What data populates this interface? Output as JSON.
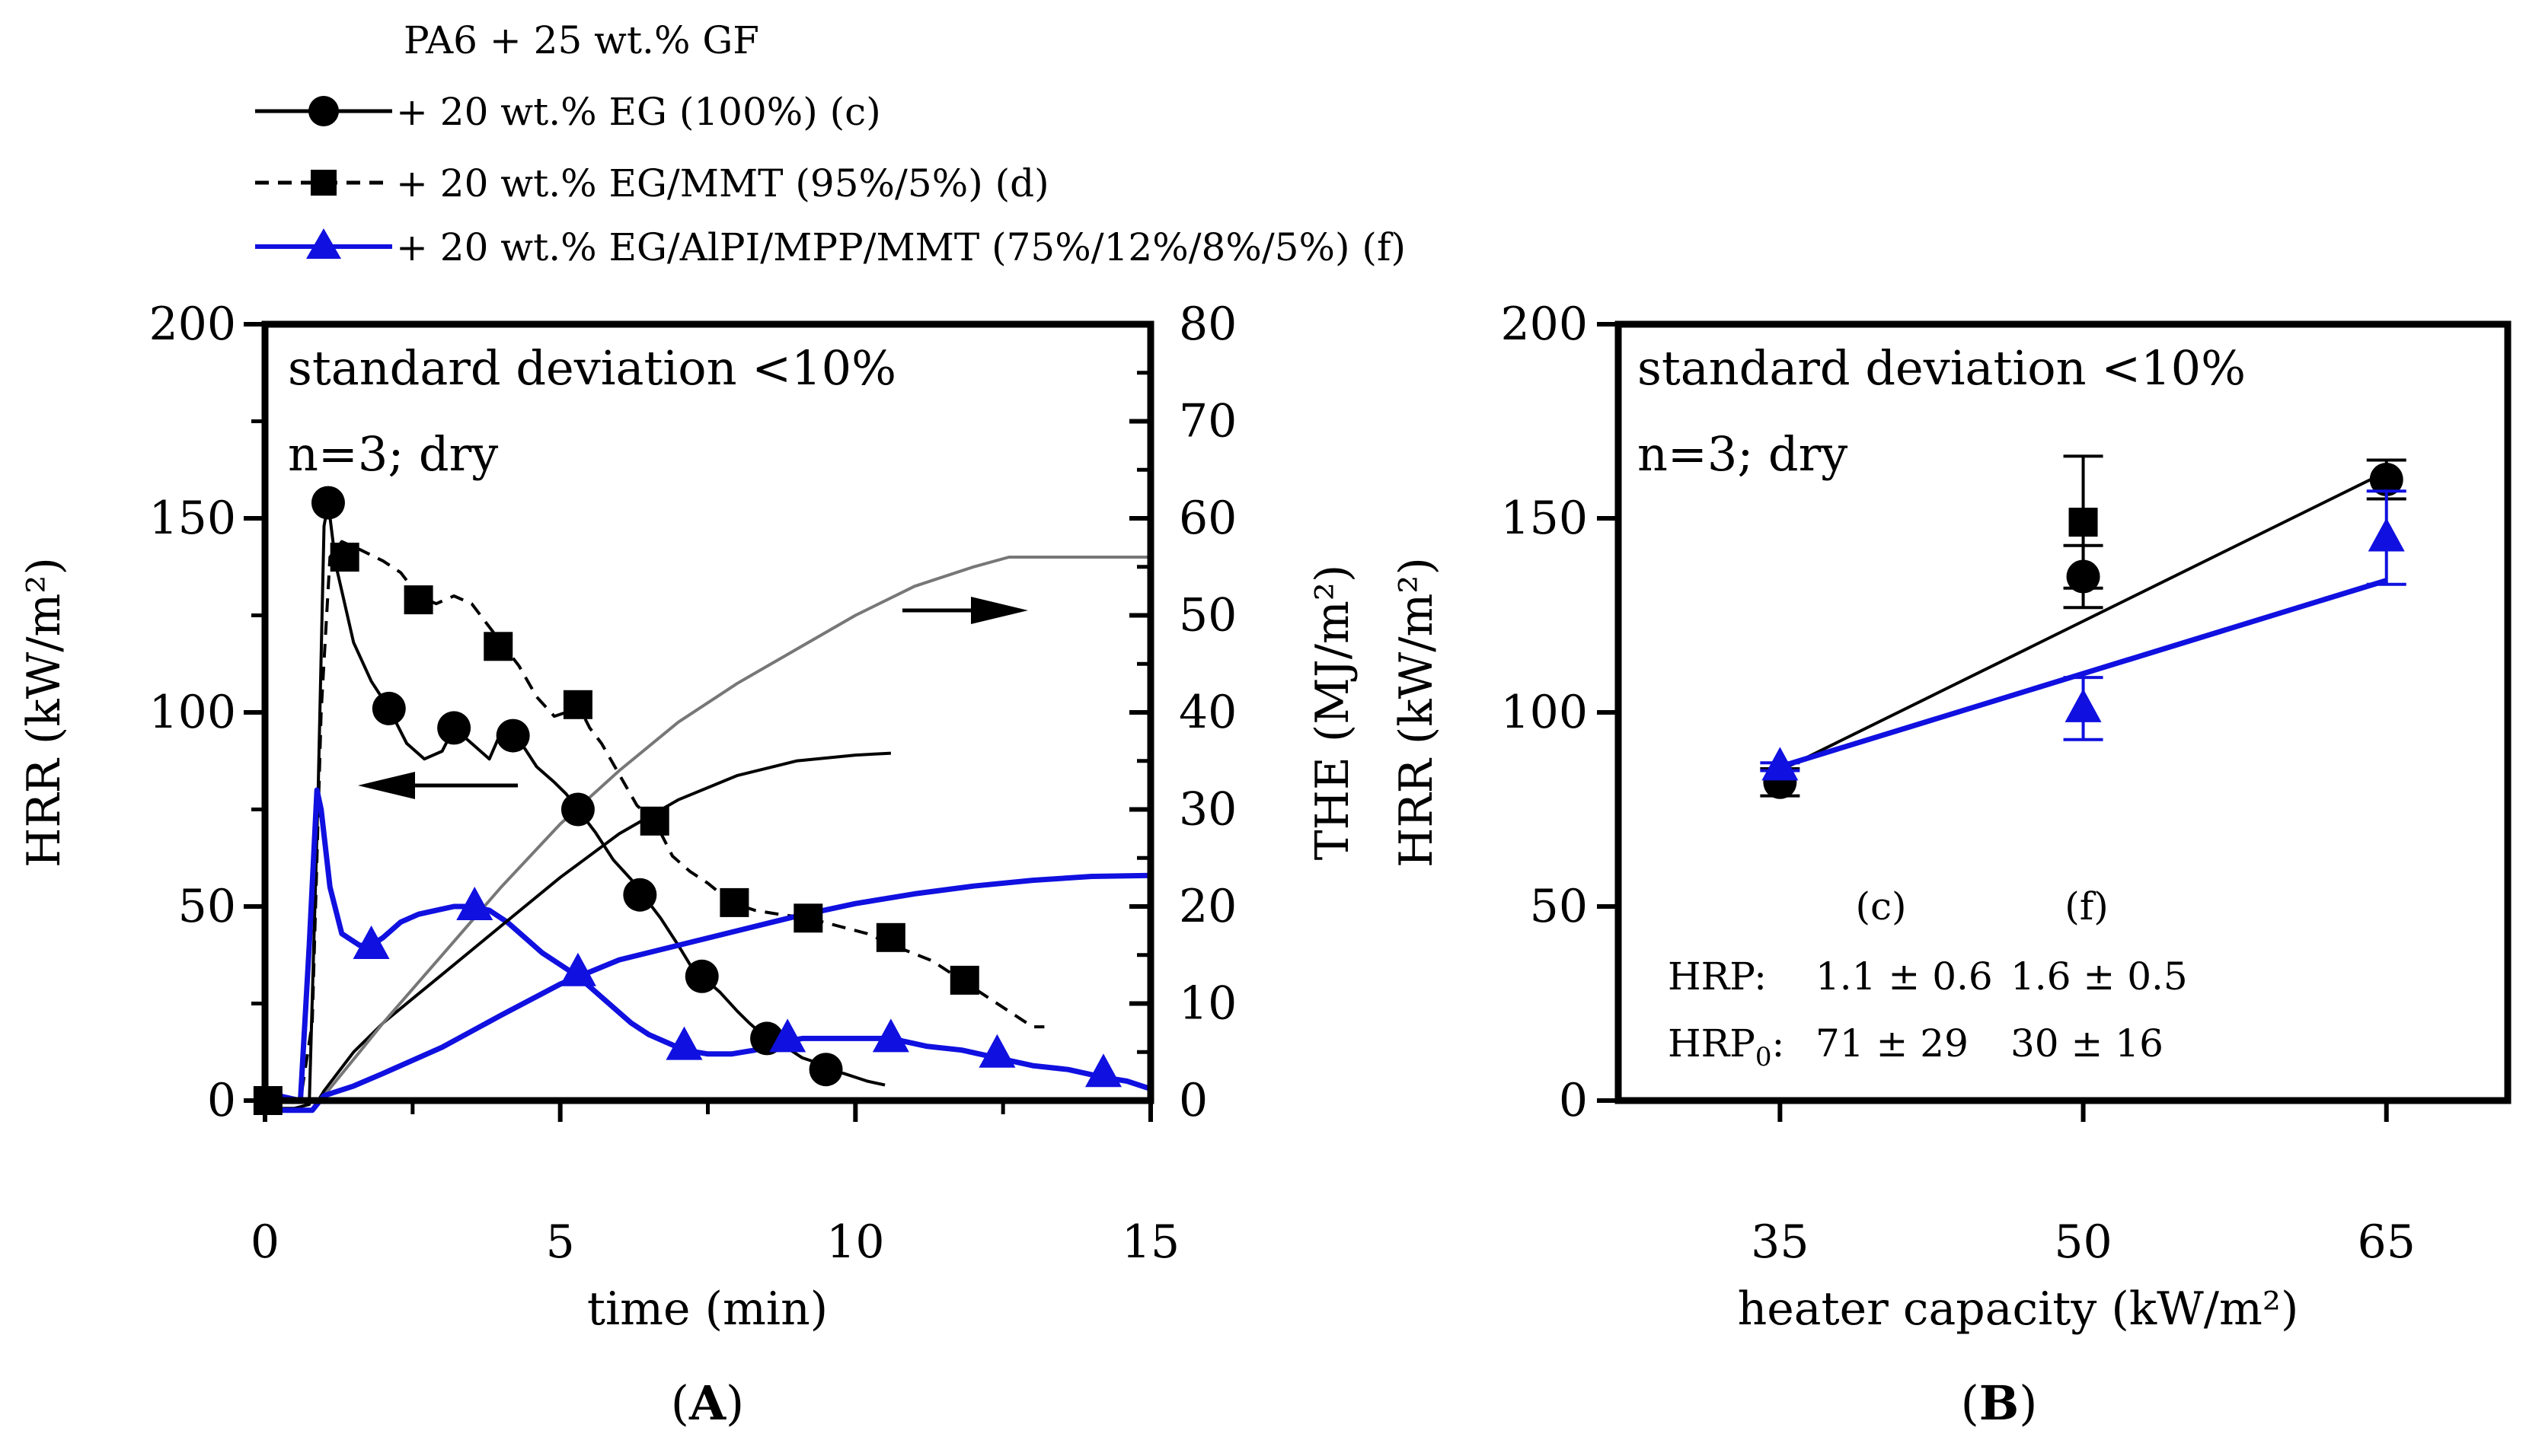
{
  "figure": {
    "legend": {
      "title": "PA6 + 25 wt.% GF",
      "entries": [
        "+ 20 wt.% EG (100%) (c)",
        "+ 20 wt.% EG/MMT (95%/5%) (d)",
        "+ 20 wt.% EG/AlPI/MPP/MMT (75%/12%/8%/5%) (f)"
      ]
    },
    "panel_a": {
      "label_open": "(",
      "label_letter": "A",
      "label_close": ")",
      "note_line1": "standard deviation <10%",
      "note_line2": "n=3; dry"
    },
    "panel_b": {
      "label_open": "(",
      "label_letter": "B",
      "label_close": ")",
      "note_line1": "standard deviation <10%",
      "note_line2": "n=3; dry",
      "col_c": "(c)",
      "col_f": "(f)",
      "hrp_label": "HRP:",
      "hrp_c": "1.1 ± 0.6",
      "hrp_f": "1.6 ± 0.5",
      "hrp0_label_main": "HRP",
      "hrp0_label_sub": "0",
      "hrp0_label_colon": ":",
      "hrp0_c": "71 ± 29",
      "hrp0_f": "30 ± 16"
    }
  },
  "colors": {
    "c": "#000000",
    "d": "#000000",
    "f": "#1010e0",
    "the_d": "#777777"
  },
  "chart_data": [
    {
      "type": "line",
      "xlabel": "time (min)",
      "ylabel": "HRR (kW/m²)",
      "y2label": "THE (MJ/m²)",
      "xlim": [
        0,
        15
      ],
      "ylim": [
        0,
        200
      ],
      "y2lim": [
        0,
        80
      ],
      "xticks": [
        0,
        5,
        10,
        15
      ],
      "yticks": [
        0,
        50,
        100,
        150,
        200
      ],
      "y2ticks": [
        0,
        10,
        20,
        30,
        40,
        50,
        60,
        70,
        80
      ],
      "grid": false,
      "series": [
        {
          "name": "+ 20 wt.% EG (100%) (c)",
          "axis": "HRR",
          "color": "#000000",
          "dash": "solid",
          "marker": "circle",
          "values": [
            [
              0,
              -2
            ],
            [
              0.5,
              -2
            ],
            [
              0.75,
              -1
            ],
            [
              0.9,
              80
            ],
            [
              1.0,
              148
            ],
            [
              1.07,
              154
            ],
            [
              1.2,
              138
            ],
            [
              1.5,
              118
            ],
            [
              1.8,
              108
            ],
            [
              2.1,
              101
            ],
            [
              2.4,
              92
            ],
            [
              2.7,
              88
            ],
            [
              3.0,
              90
            ],
            [
              3.2,
              96
            ],
            [
              3.5,
              92
            ],
            [
              3.8,
              88
            ],
            [
              4.0,
              95
            ],
            [
              4.3,
              93
            ],
            [
              4.6,
              86
            ],
            [
              4.9,
              82
            ],
            [
              5.1,
              79
            ],
            [
              5.3,
              75
            ],
            [
              5.6,
              69
            ],
            [
              5.9,
              62
            ],
            [
              6.2,
              57
            ],
            [
              6.4,
              53
            ],
            [
              6.7,
              47
            ],
            [
              7.0,
              40
            ],
            [
              7.2,
              35
            ],
            [
              7.4,
              32
            ],
            [
              7.7,
              28
            ],
            [
              8.0,
              23
            ],
            [
              8.2,
              20
            ],
            [
              8.5,
              16
            ],
            [
              8.8,
              14
            ],
            [
              9.1,
              11
            ],
            [
              9.3,
              10
            ],
            [
              9.5,
              8
            ],
            [
              9.8,
              7
            ],
            [
              10.0,
              6
            ],
            [
              10.2,
              5
            ],
            [
              10.5,
              4
            ]
          ],
          "markers": [
            [
              1.07,
              154
            ],
            [
              2.1,
              101
            ],
            [
              3.2,
              96
            ],
            [
              4.2,
              94
            ],
            [
              5.3,
              75
            ],
            [
              6.35,
              53
            ],
            [
              7.4,
              32
            ],
            [
              8.5,
              16
            ],
            [
              9.5,
              8
            ]
          ]
        },
        {
          "name": "+ 20 wt.% EG/MMT (95%/5%) (d)",
          "axis": "HRR",
          "color": "#000000",
          "dash": "dashed",
          "marker": "square",
          "values": [
            [
              0,
              0
            ],
            [
              0.6,
              0
            ],
            [
              0.8,
              20
            ],
            [
              0.95,
              100
            ],
            [
              1.1,
              140
            ],
            [
              1.3,
              144
            ],
            [
              1.6,
              142
            ],
            [
              2.0,
              139
            ],
            [
              2.3,
              136
            ],
            [
              2.6,
              130
            ],
            [
              2.9,
              128
            ],
            [
              3.2,
              130
            ],
            [
              3.5,
              128
            ],
            [
              3.8,
              122
            ],
            [
              4.0,
              118
            ],
            [
              4.3,
              112
            ],
            [
              4.6,
              104
            ],
            [
              4.9,
              99
            ],
            [
              5.1,
              100
            ],
            [
              5.3,
              102
            ],
            [
              5.5,
              96
            ],
            [
              5.7,
              92
            ],
            [
              6.0,
              84
            ],
            [
              6.3,
              76
            ],
            [
              6.6,
              72
            ],
            [
              6.9,
              63
            ],
            [
              7.2,
              59
            ],
            [
              7.5,
              56
            ],
            [
              7.9,
              51
            ],
            [
              8.3,
              49
            ],
            [
              8.7,
              48
            ],
            [
              9.2,
              47
            ],
            [
              9.7,
              45
            ],
            [
              10.2,
              43
            ],
            [
              10.8,
              39
            ],
            [
              11.3,
              36
            ],
            [
              11.8,
              31
            ],
            [
              12.3,
              26
            ],
            [
              12.7,
              22
            ],
            [
              13.0,
              19
            ],
            [
              13.2,
              19
            ]
          ],
          "markers": [
            [
              0.05,
              0
            ],
            [
              1.35,
              140
            ],
            [
              2.6,
              129
            ],
            [
              3.95,
              117
            ],
            [
              5.3,
              102
            ],
            [
              6.6,
              72
            ],
            [
              7.95,
              51
            ],
            [
              9.2,
              47
            ],
            [
              10.6,
              42
            ],
            [
              11.85,
              31
            ]
          ]
        },
        {
          "name": "+ 20 wt.% EG/AlPI/MPP/MMT (75%/12%/8%/5%) (f)",
          "axis": "HRR",
          "color": "#1010e0",
          "dash": "solid",
          "marker": "triangle",
          "values": [
            [
              0,
              3
            ],
            [
              0.3,
              1
            ],
            [
              0.6,
              0
            ],
            [
              0.75,
              40
            ],
            [
              0.88,
              80
            ],
            [
              0.95,
              75
            ],
            [
              1.1,
              55
            ],
            [
              1.3,
              43
            ],
            [
              1.6,
              40
            ],
            [
              1.8,
              40
            ],
            [
              2.0,
              42
            ],
            [
              2.3,
              46
            ],
            [
              2.6,
              48
            ],
            [
              2.9,
              49
            ],
            [
              3.2,
              50
            ],
            [
              3.5,
              50
            ],
            [
              3.8,
              49
            ],
            [
              4.1,
              46
            ],
            [
              4.4,
              42
            ],
            [
              4.7,
              38
            ],
            [
              5.0,
              35
            ],
            [
              5.3,
              32
            ],
            [
              5.6,
              28
            ],
            [
              5.9,
              24
            ],
            [
              6.2,
              20
            ],
            [
              6.5,
              17
            ],
            [
              6.8,
              15
            ],
            [
              7.1,
              13
            ],
            [
              7.5,
              12
            ],
            [
              7.9,
              12
            ],
            [
              8.3,
              13
            ],
            [
              8.7,
              15
            ],
            [
              9.1,
              16
            ],
            [
              9.5,
              16
            ],
            [
              10.0,
              16
            ],
            [
              10.6,
              16
            ],
            [
              11.2,
              14
            ],
            [
              11.8,
              13
            ],
            [
              12.4,
              11
            ],
            [
              13.0,
              9
            ],
            [
              13.6,
              8
            ],
            [
              14.2,
              6
            ],
            [
              14.6,
              5
            ],
            [
              15.0,
              3
            ]
          ],
          "markers": [
            [
              1.8,
              40
            ],
            [
              3.55,
              50
            ],
            [
              5.3,
              33
            ],
            [
              7.1,
              14
            ],
            [
              8.85,
              16
            ],
            [
              10.6,
              16
            ],
            [
              12.4,
              12
            ],
            [
              14.2,
              7
            ]
          ]
        },
        {
          "name": "THE (c)",
          "axis": "THE",
          "color": "#000000",
          "dash": "solid",
          "values": [
            [
              0,
              -1
            ],
            [
              0.8,
              -1
            ],
            [
              1.0,
              1
            ],
            [
              1.5,
              5
            ],
            [
              2.0,
              8
            ],
            [
              2.5,
              10.5
            ],
            [
              3.0,
              13
            ],
            [
              4.0,
              18
            ],
            [
              5.0,
              23
            ],
            [
              6.0,
              27.5
            ],
            [
              7.0,
              31
            ],
            [
              8.0,
              33.5
            ],
            [
              9.0,
              35
            ],
            [
              10.0,
              35.6
            ],
            [
              10.6,
              35.8
            ]
          ]
        },
        {
          "name": "THE (d)",
          "axis": "THE",
          "color": "#777777",
          "dash": "solid",
          "values": [
            [
              0,
              -1
            ],
            [
              0.8,
              -1
            ],
            [
              1.2,
              2
            ],
            [
              1.6,
              5
            ],
            [
              2.0,
              8
            ],
            [
              3.0,
              15
            ],
            [
              4.0,
              22
            ],
            [
              5.0,
              28.5
            ],
            [
              6.0,
              34
            ],
            [
              7.0,
              39
            ],
            [
              8.0,
              43
            ],
            [
              9.0,
              46.5
            ],
            [
              10.0,
              50
            ],
            [
              11.0,
              53
            ],
            [
              12.0,
              55
            ],
            [
              12.6,
              56
            ],
            [
              13.3,
              56
            ],
            [
              15.0,
              56
            ]
          ]
        },
        {
          "name": "THE (f)",
          "axis": "THE",
          "color": "#1010e0",
          "dash": "solid",
          "values": [
            [
              0,
              -1
            ],
            [
              0.8,
              -1
            ],
            [
              1.0,
              0.5
            ],
            [
              1.5,
              1.5
            ],
            [
              2.0,
              2.8
            ],
            [
              3.0,
              5.5
            ],
            [
              4.0,
              8.8
            ],
            [
              5.0,
              12
            ],
            [
              6.0,
              14.5
            ],
            [
              7.0,
              16
            ],
            [
              8.0,
              17.5
            ],
            [
              9.0,
              19
            ],
            [
              10.0,
              20.3
            ],
            [
              11.0,
              21.3
            ],
            [
              12.0,
              22.1
            ],
            [
              13.0,
              22.7
            ],
            [
              14.0,
              23.1
            ],
            [
              15.0,
              23.2
            ]
          ]
        }
      ],
      "annotations": [
        "arrow pointing left toward HRR axis",
        "arrow pointing right toward THE axis"
      ]
    },
    {
      "type": "scatter",
      "xlabel": "heater capacity (kW/m²)",
      "ylabel": "HRR (kW/m²)",
      "xlim": [
        27,
        71
      ],
      "ylim": [
        0,
        200
      ],
      "xticks": [
        35,
        50,
        65
      ],
      "yticks": [
        0,
        50,
        100,
        150,
        200
      ],
      "grid": false,
      "series": [
        {
          "name": "(c)",
          "color": "#000000",
          "marker": "circle",
          "x": [
            35,
            50,
            65
          ],
          "y": [
            82,
            135,
            160
          ],
          "err": [
            3.5,
            8,
            5
          ],
          "fit": [
            [
              35,
              85
            ],
            [
              65,
              162
            ]
          ]
        },
        {
          "name": "(d)",
          "color": "#000000",
          "marker": "square",
          "x": [
            50
          ],
          "y": [
            149
          ],
          "err": [
            17
          ]
        },
        {
          "name": "(f)",
          "color": "#1010e0",
          "marker": "triangle",
          "x": [
            35,
            50,
            65
          ],
          "y": [
            86,
            101,
            145
          ],
          "err": [
            1,
            8,
            12
          ],
          "fit": [
            [
              35,
              86
            ],
            [
              65,
              134
            ]
          ]
        }
      ]
    }
  ]
}
